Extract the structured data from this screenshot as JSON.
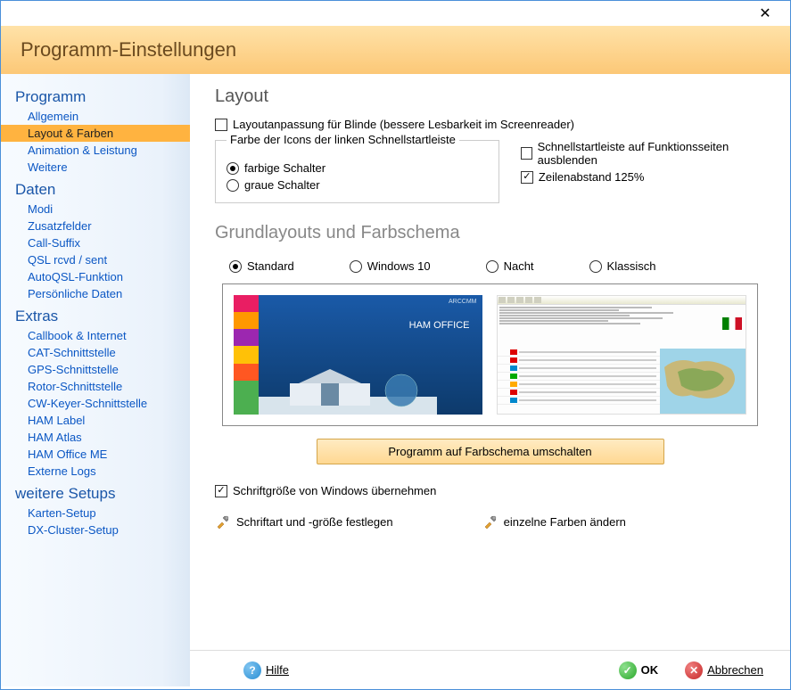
{
  "window": {
    "close_glyph": "✕"
  },
  "header": {
    "title": "Programm-Einstellungen"
  },
  "sidebar": {
    "groups": [
      {
        "title": "Programm",
        "items": [
          "Allgemein",
          "Layout & Farben",
          "Animation & Leistung",
          "Weitere"
        ],
        "selected_index": 1
      },
      {
        "title": "Daten",
        "items": [
          "Modi",
          "Zusatzfelder",
          "Call-Suffix",
          "QSL rcvd / sent",
          "AutoQSL-Funktion",
          "Persönliche Daten"
        ],
        "selected_index": -1
      },
      {
        "title": "Extras",
        "items": [
          "Callbook & Internet",
          "CAT-Schnittstelle",
          "GPS-Schnittstelle",
          "Rotor-Schnittstelle",
          "CW-Keyer-Schnittstelle",
          "HAM Label",
          "HAM Atlas",
          "HAM Office ME",
          "Externe Logs"
        ],
        "selected_index": -1
      },
      {
        "title": "weitere Setups",
        "items": [
          "Karten-Setup",
          "DX-Cluster-Setup"
        ],
        "selected_index": -1
      }
    ]
  },
  "layout_section": {
    "title": "Layout",
    "blind_checkbox": {
      "label": "Layoutanpassung für Blinde (bessere Lesbarkeit im Screenreader)",
      "checked": false
    },
    "icon_color": {
      "legend": "Farbe der Icons der linken Schnellstartleiste",
      "options": [
        "farbige Schalter",
        "graue Schalter"
      ],
      "selected": 0
    },
    "right_opts": {
      "hide_quickstart": {
        "label": "Schnellstartleiste auf Funktionsseiten ausblenden",
        "checked": false
      },
      "line_spacing": {
        "label": "Zeilenabstand 125%",
        "checked": true
      }
    }
  },
  "scheme_section": {
    "title": "Grundlayouts und Farbschema",
    "options": [
      "Standard",
      "Windows 10",
      "Nacht",
      "Klassisch"
    ],
    "selected": 0,
    "preview": {
      "left_tile_colors": [
        "#e91e63",
        "#ff9800",
        "#9c27b0",
        "#ffc107",
        "#ff5722",
        "#4caf50",
        "#4caf50"
      ],
      "left_label": "HAM OFFICE",
      "left_badge": "ARCCMM",
      "right_row_flag_colors": [
        "#d00",
        "#d00",
        "#08c",
        "#0a0",
        "#fa0",
        "#d00",
        "#08c"
      ]
    },
    "apply_button": "Programm auf Farbschema umschalten"
  },
  "font_section": {
    "inherit_windows": {
      "label": "Schriftgröße von Windows übernehmen",
      "checked": true
    },
    "set_font": "Schriftart und -größe festlegen",
    "set_colors": "einzelne Farben ändern"
  },
  "footer": {
    "help": "Hilfe",
    "ok": "OK",
    "cancel": "Abbrechen"
  },
  "style": {
    "accent_orange": "#ffb340",
    "link_blue": "#0b57c4",
    "header_text": "#6b4a1f"
  }
}
